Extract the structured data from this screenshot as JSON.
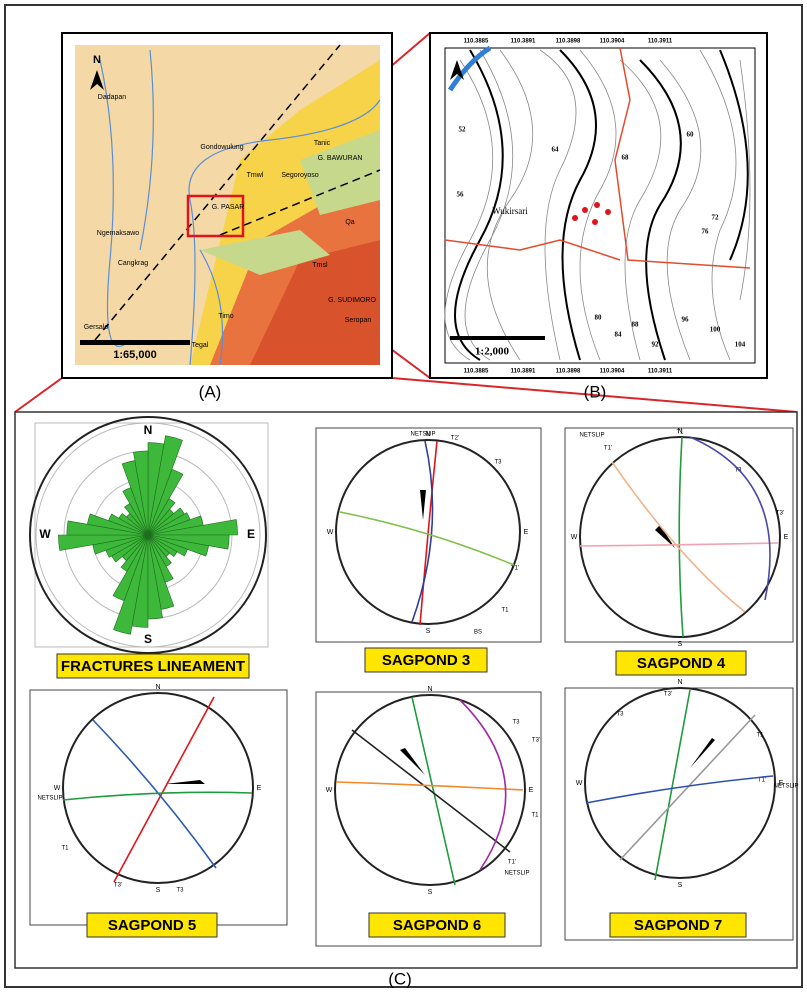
{
  "panel_a": {
    "label": "(A)",
    "north": "N",
    "scale": "1:65,000",
    "places": [
      "Dadapan",
      "Gondowulung",
      "Tanic",
      "G. BAWURAN",
      "Segoroyoso",
      "G. PASAR",
      "Ngemaksawo",
      "Cangkrag",
      "Gersalo",
      "Tegal",
      "Timo",
      "G. SUDIMORO",
      "Seropan",
      "Qa",
      "Tmwl",
      "Tmsl"
    ]
  },
  "panel_b": {
    "label": "(B)",
    "place": "Wukirsari",
    "scale": "1:2,000",
    "coords": [
      "110.3885",
      "110.3891",
      "110.3898",
      "110.3904",
      "110.3911"
    ],
    "contours": [
      "52",
      "56",
      "60",
      "64",
      "68",
      "72",
      "76",
      "80",
      "84",
      "88",
      "92",
      "96",
      "100",
      "104"
    ]
  },
  "panel_c": {
    "label": "(C)",
    "rose": {
      "title": "FRACTURES LINEAMENT",
      "n": "N",
      "s": "S",
      "e": "E",
      "w": "W",
      "petals": [
        3.3,
        3.6,
        2.5,
        1.5,
        1.2,
        1.5,
        1.6,
        2.0,
        3.2,
        2.9,
        2.2,
        1.5,
        1.2,
        1.0,
        1.3,
        1.8,
        2.7,
        3.0
      ]
    },
    "nets": [
      {
        "title": "SAGPOND 3",
        "n": "N",
        "s": "S",
        "e": "E",
        "w": "W",
        "marks": [
          "NETSLIP",
          "T2'",
          "T3",
          "T1'",
          "T1",
          "BS"
        ]
      },
      {
        "title": "SAGPOND 4",
        "n": "N",
        "s": "S",
        "e": "E",
        "w": "W",
        "marks": [
          "NETSLIP",
          "T1",
          "T1'",
          "T3",
          "T3'"
        ]
      },
      {
        "title": "SAGPOND 5",
        "n": "N",
        "s": "S",
        "e": "E",
        "w": "W",
        "marks": [
          "NETSLIP",
          "T1",
          "T3'",
          "T3"
        ]
      },
      {
        "title": "SAGPOND 6",
        "n": "N",
        "s": "S",
        "e": "E",
        "w": "W",
        "marks": [
          "T3",
          "T3'",
          "T1",
          "T1'",
          "NETSLIP"
        ]
      },
      {
        "title": "SAGPOND 7",
        "n": "N",
        "s": "S",
        "e": "E",
        "w": "W",
        "marks": [
          "T3'",
          "T3",
          "T1",
          "T1'",
          "NETSLIP"
        ]
      }
    ]
  }
}
